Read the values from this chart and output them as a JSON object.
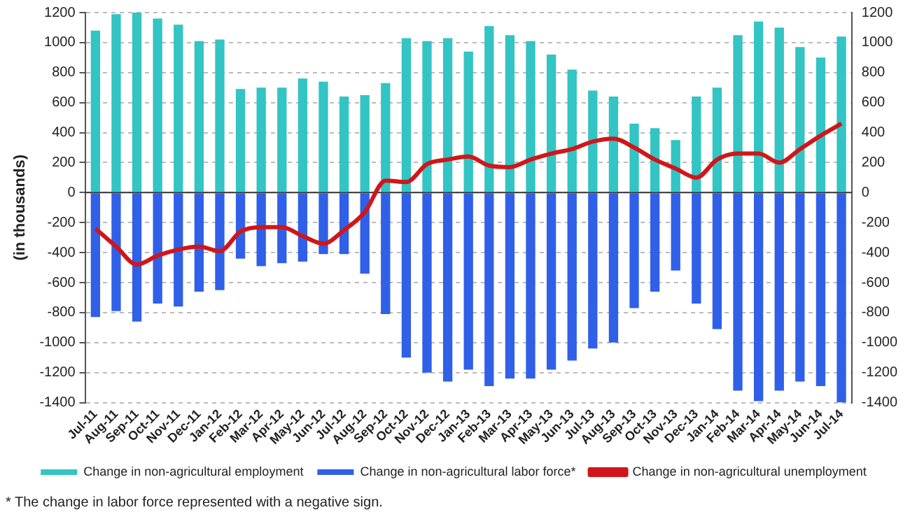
{
  "chart_data": {
    "type": "bar",
    "ylabel": "(in thousands)",
    "categories": [
      "Jul-11",
      "Aug-11",
      "Sep-11",
      "Oct-11",
      "Nov-11",
      "Dec-11",
      "Jan-12",
      "Feb-12",
      "Mar-12",
      "Apr-12",
      "May-12",
      "Jun-12",
      "Jul-12",
      "Aug-12",
      "Sep-12",
      "Oct-12",
      "Nov-12",
      "Dec-12",
      "Jan-13",
      "Feb-13",
      "Mar-13",
      "Apr-13",
      "May-13",
      "Jun-13",
      "Jul-13",
      "Aug-13",
      "Sep-13",
      "Oct-13",
      "Nov-13",
      "Dec-13",
      "Jan-14",
      "Feb-14",
      "Mar-14",
      "Apr-14",
      "May-14",
      "Jun-14",
      "Jul-14"
    ],
    "series": [
      {
        "name": "Change in non-agricultural employment",
        "color": "#33c4c4",
        "values": [
          1080,
          1190,
          1200,
          1160,
          1120,
          1010,
          1020,
          690,
          700,
          700,
          760,
          740,
          640,
          650,
          730,
          1030,
          1010,
          1030,
          940,
          1110,
          1050,
          1010,
          920,
          820,
          680,
          640,
          460,
          430,
          350,
          640,
          700,
          1050,
          1140,
          1100,
          970,
          900,
          1040
        ]
      },
      {
        "name": "Change in non-agricultural labor force*",
        "color": "#3060e8",
        "values": [
          -830,
          -790,
          -860,
          -740,
          -760,
          -660,
          -650,
          -440,
          -490,
          -470,
          -460,
          -410,
          -410,
          -540,
          -810,
          -1100,
          -1200,
          -1260,
          -1180,
          -1290,
          -1240,
          -1240,
          -1180,
          -1120,
          -1040,
          -1000,
          -770,
          -660,
          -520,
          -740,
          -910,
          -1320,
          -1390,
          -1320,
          -1260,
          -1290,
          -1400
        ]
      },
      {
        "name": "Change in non-agricultural unemployment",
        "type": "line",
        "color": "#d0161a",
        "values": [
          -240,
          -360,
          -480,
          -420,
          -380,
          -360,
          -390,
          -260,
          -230,
          -230,
          -290,
          -340,
          -250,
          -130,
          80,
          70,
          190,
          220,
          240,
          180,
          170,
          220,
          260,
          290,
          340,
          360,
          300,
          220,
          160,
          100,
          220,
          260,
          260,
          200,
          290,
          380,
          460
        ]
      }
    ],
    "stacked": true,
    "ylim": [
      -1400,
      1200
    ],
    "yticks": [
      -1400,
      -1200,
      -1000,
      -800,
      -600,
      -400,
      -200,
      0,
      200,
      400,
      600,
      800,
      1000,
      1200
    ],
    "y2lim": [
      -1400,
      1200
    ],
    "y2ticks": [
      -1400,
      -1200,
      -1000,
      -800,
      -600,
      -400,
      -200,
      0,
      200,
      400,
      600,
      800,
      1000,
      1200
    ],
    "grid": "y",
    "legend": "bottom",
    "marker": "none",
    "line_style": "solid",
    "annotations": [
      "* The change in labor force represented with a negative sign."
    ]
  }
}
